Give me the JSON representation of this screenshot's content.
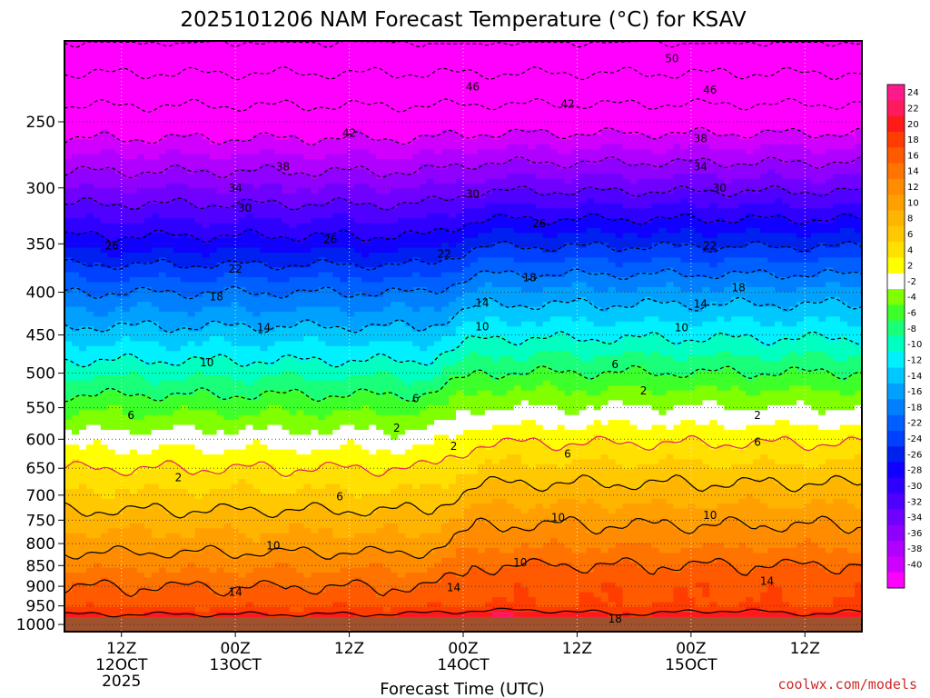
{
  "chart_data": {
    "type": "heatmap",
    "title": "2025101206 NAM Forecast Temperature (°C) for KSAV",
    "xlabel": "Forecast Time (UTC)",
    "ylabel": "",
    "y_axis": {
      "scale": "log-pressure",
      "ylim": [
        1020,
        200
      ],
      "ticks": [
        250,
        300,
        350,
        400,
        450,
        500,
        550,
        600,
        650,
        700,
        750,
        800,
        850,
        900,
        950,
        1000
      ]
    },
    "x_axis": {
      "unit": "hours since 2025-10-12 06Z",
      "xlim": [
        0,
        84
      ],
      "ticks": [
        {
          "x": 6,
          "lines": [
            "12Z",
            "12OCT",
            "2025"
          ]
        },
        {
          "x": 18,
          "lines": [
            "00Z",
            "13OCT"
          ]
        },
        {
          "x": 30,
          "lines": [
            "12Z"
          ]
        },
        {
          "x": 42,
          "lines": [
            "00Z",
            "14OCT"
          ]
        },
        {
          "x": 54,
          "lines": [
            "12Z"
          ]
        },
        {
          "x": 66,
          "lines": [
            "00Z",
            "15OCT"
          ]
        },
        {
          "x": 78,
          "lines": [
            "12Z"
          ]
        }
      ]
    },
    "grid": true,
    "colorbar": {
      "placement": "right",
      "labels": [
        "24",
        "22",
        "20",
        "18",
        "16",
        "14",
        "12",
        "10",
        "8",
        "6",
        "4",
        "2",
        "-2",
        "-4",
        "-6",
        "-8",
        "-10",
        "-12",
        "-14",
        "-16",
        "-18",
        "-22",
        "-24",
        "-26",
        "-28",
        "-30",
        "-32",
        "-34",
        "-36",
        "-38",
        "-40"
      ],
      "colors": [
        "#ff1a8c",
        "#ff1a5e",
        "#ff1a1a",
        "#ff3d00",
        "#ff5a00",
        "#ff7400",
        "#ff8c00",
        "#ffa000",
        "#ffb400",
        "#ffc800",
        "#ffe000",
        "#ffff00",
        "#ffffff",
        "#80ff00",
        "#3dff2a",
        "#1aff7a",
        "#00ffc0",
        "#00f0ff",
        "#00c8ff",
        "#00a0ff",
        "#0080ff",
        "#0060ff",
        "#0040ff",
        "#0020f0",
        "#1000ff",
        "#3000ff",
        "#5000ff",
        "#7000ff",
        "#9000ff",
        "#b000ff",
        "#d000ff",
        "#ff00ff"
      ]
    },
    "contours": [
      {
        "value": 18,
        "labels": [
          {
            "text": "18",
            "x": 58,
            "p": 985
          }
        ]
      },
      {
        "value": 14,
        "labels": [
          {
            "text": "14",
            "x": 18,
            "p": 915
          },
          {
            "text": "14",
            "x": 41,
            "p": 903
          },
          {
            "text": "14",
            "x": 74,
            "p": 887
          }
        ]
      },
      {
        "value": 10,
        "labels": [
          {
            "text": "10",
            "x": 22,
            "p": 805
          },
          {
            "text": "10",
            "x": 48,
            "p": 843
          },
          {
            "text": "10",
            "x": 52,
            "p": 745
          },
          {
            "text": "10",
            "x": 68,
            "p": 740
          }
        ]
      },
      {
        "value": 6,
        "labels": [
          {
            "text": "6",
            "x": 29,
            "p": 703
          },
          {
            "text": "6",
            "x": 53,
            "p": 625
          },
          {
            "text": "6",
            "x": 73,
            "p": 605
          }
        ]
      },
      {
        "value": 2,
        "labels": [
          {
            "text": "2",
            "x": 12,
            "p": 667
          },
          {
            "text": "2",
            "x": 35,
            "p": 582
          },
          {
            "text": "2",
            "x": 41,
            "p": 612
          },
          {
            "text": "2",
            "x": 61,
            "p": 525
          },
          {
            "text": "2",
            "x": 73,
            "p": 562
          }
        ]
      },
      {
        "value": -6,
        "labels": [
          {
            "text": "6",
            "x": 7,
            "p": 562
          },
          {
            "text": "6",
            "x": 37,
            "p": 536
          },
          {
            "text": "6",
            "x": 58,
            "p": 488
          }
        ]
      },
      {
        "value": -10,
        "labels": [
          {
            "text": "10",
            "x": 15,
            "p": 486
          },
          {
            "text": "10",
            "x": 44,
            "p": 440
          },
          {
            "text": "10",
            "x": 65,
            "p": 441
          }
        ]
      },
      {
        "value": -14,
        "labels": [
          {
            "text": "14",
            "x": 21,
            "p": 441
          },
          {
            "text": "14",
            "x": 44,
            "p": 412
          },
          {
            "text": "14",
            "x": 67,
            "p": 413
          }
        ]
      },
      {
        "value": -18,
        "labels": [
          {
            "text": "18",
            "x": 16,
            "p": 405
          },
          {
            "text": "18",
            "x": 49,
            "p": 384
          },
          {
            "text": "18",
            "x": 71,
            "p": 395
          }
        ]
      },
      {
        "value": -22,
        "labels": [
          {
            "text": "22",
            "x": 18,
            "p": 375
          },
          {
            "text": "22",
            "x": 40,
            "p": 360
          },
          {
            "text": "22",
            "x": 68,
            "p": 352
          }
        ]
      },
      {
        "value": -26,
        "labels": [
          {
            "text": "26",
            "x": 5,
            "p": 352
          },
          {
            "text": "26",
            "x": 28,
            "p": 346
          },
          {
            "text": "26",
            "x": 50,
            "p": 331
          }
        ]
      },
      {
        "value": -30,
        "labels": [
          {
            "text": "30",
            "x": 19,
            "p": 317
          },
          {
            "text": "30",
            "x": 43,
            "p": 305
          },
          {
            "text": "30",
            "x": 69,
            "p": 300
          }
        ]
      },
      {
        "value": -34,
        "labels": [
          {
            "text": "34",
            "x": 18,
            "p": 300
          },
          {
            "text": "34",
            "x": 67,
            "p": 283
          }
        ]
      },
      {
        "value": -38,
        "labels": [
          {
            "text": "38",
            "x": 23,
            "p": 283
          },
          {
            "text": "38",
            "x": 67,
            "p": 262
          }
        ]
      },
      {
        "value": -42,
        "labels": [
          {
            "text": "42",
            "x": 30,
            "p": 258
          },
          {
            "text": "42",
            "x": 53,
            "p": 238
          }
        ]
      },
      {
        "value": -46,
        "labels": [
          {
            "text": "46",
            "x": 43,
            "p": 227
          },
          {
            "text": "46",
            "x": 68,
            "p": 229
          }
        ]
      },
      {
        "value": -50,
        "labels": [
          {
            "text": "50",
            "x": 64,
            "p": 210
          }
        ]
      }
    ]
  },
  "footer": {
    "credit": "coolwx.com/models"
  }
}
